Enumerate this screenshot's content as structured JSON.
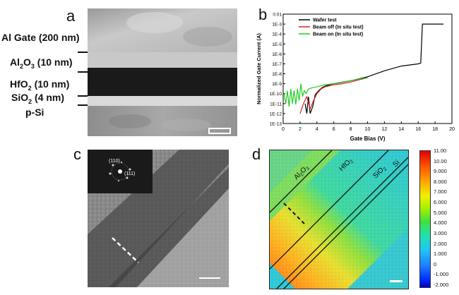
{
  "panel_a": {
    "letter": "a",
    "layers": [
      {
        "label": "Al Gate (200 nm)"
      },
      {
        "label": "Al",
        "sub": "2",
        "label2": "O",
        "sub2": "3",
        "label3": " (10 nm)"
      },
      {
        "label": "HfO",
        "sub": "2",
        "label3": " (10 nm)"
      },
      {
        "label": "SiO",
        "sub": "2",
        "label3": " (4 nm)"
      },
      {
        "label": "p-Si"
      }
    ]
  },
  "panel_b": {
    "letter": "b",
    "chart_data": {
      "type": "line",
      "xlabel": "Gate Bias (V)",
      "ylabel": "Normalized Gate Current (A)",
      "xlim": [
        0,
        20
      ],
      "x_ticks": [
        "0",
        "2",
        "4",
        "6",
        "8",
        "10",
        "12",
        "14",
        "16",
        "18",
        "20"
      ],
      "y_scale": "log",
      "y_ticks": [
        "1E-13",
        "1E-12",
        "1E-11",
        "1E-10",
        "1E-9",
        "1E-8",
        "1E-7",
        "1E-6",
        "1E-5",
        "1E-4",
        "1E-3",
        "0.01"
      ],
      "legend_position": "top-left",
      "series": [
        {
          "name": "Wafer test",
          "color": "#000000",
          "x": [
            2.6,
            2.8,
            3.0,
            3.2,
            3.5,
            3.8,
            4.2,
            4.6,
            5.0,
            6,
            8,
            10,
            12,
            14,
            16,
            16.3,
            16.5,
            18,
            19
          ],
          "y": [
            1e-11,
            1e-12,
            5e-11,
            1e-12,
            5e-12,
            8e-11,
            2e-10,
            4e-10,
            6e-10,
            1e-09,
            2e-09,
            5e-09,
            2e-08,
            6e-08,
            1e-07,
            1.2e-07,
            0.001,
            0.001,
            0.001
          ]
        },
        {
          "name": "Beam off (In situ test)",
          "color": "#e02020",
          "x": [
            2.0,
            2.4,
            2.8,
            3.2,
            3.6,
            4.0,
            4.5,
            5.0,
            6,
            7,
            8,
            9,
            10
          ],
          "y": [
            1e-12,
            1e-11,
            5e-11,
            3e-12,
            2e-11,
            1e-10,
            3e-10,
            5e-10,
            8e-10,
            1e-09,
            1.5e-09,
            2.5e-09,
            4e-09
          ]
        },
        {
          "name": "Beam on (In situ test)",
          "color": "#22cc22",
          "x": [
            0.1,
            0.3,
            0.5,
            0.7,
            0.9,
            1.1,
            1.3,
            1.5,
            1.7,
            1.9,
            2.1,
            2.3,
            2.5,
            2.7,
            3.0,
            3.5,
            4.0,
            5,
            6,
            7,
            8,
            9,
            10
          ],
          "y": [
            1e-10,
            1e-11,
            2e-10,
            5e-12,
            3e-10,
            1e-11,
            2e-10,
            8e-12,
            3e-10,
            2e-11,
            1e-09,
            5e-11,
            2e-10,
            1e-10,
            3e-10,
            4e-10,
            5e-10,
            8e-10,
            1e-09,
            1.5e-09,
            2e-09,
            3e-09,
            4e-09
          ]
        }
      ]
    }
  },
  "panel_c": {
    "letter": "c",
    "fft_labels": [
      "(110)",
      "(111)"
    ]
  },
  "panel_d": {
    "letter": "d",
    "region_labels": [
      {
        "text": "Al",
        "sub": "2",
        "text2": "O",
        "sub2": "3"
      },
      {
        "text": "HfO",
        "sub": "2"
      },
      {
        "text": "SiO",
        "sub": "2"
      },
      {
        "text": "Si"
      }
    ],
    "colorbar_labels": [
      "11.00",
      "10.00",
      "9.000",
      "8.000",
      "7.000",
      "6.000",
      "5.000",
      "4.000",
      "3.000",
      "2.000",
      "1.000",
      "0",
      "-1.000",
      "-2.000"
    ]
  }
}
